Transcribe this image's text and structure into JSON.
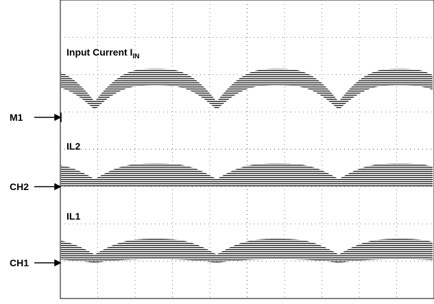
{
  "traces": [
    {
      "label": "Input Current I",
      "subscript": "IN"
    },
    {
      "label": "IL2"
    },
    {
      "label": "IL1"
    }
  ],
  "markers": [
    "M1",
    "CH2",
    "CH1"
  ]
}
